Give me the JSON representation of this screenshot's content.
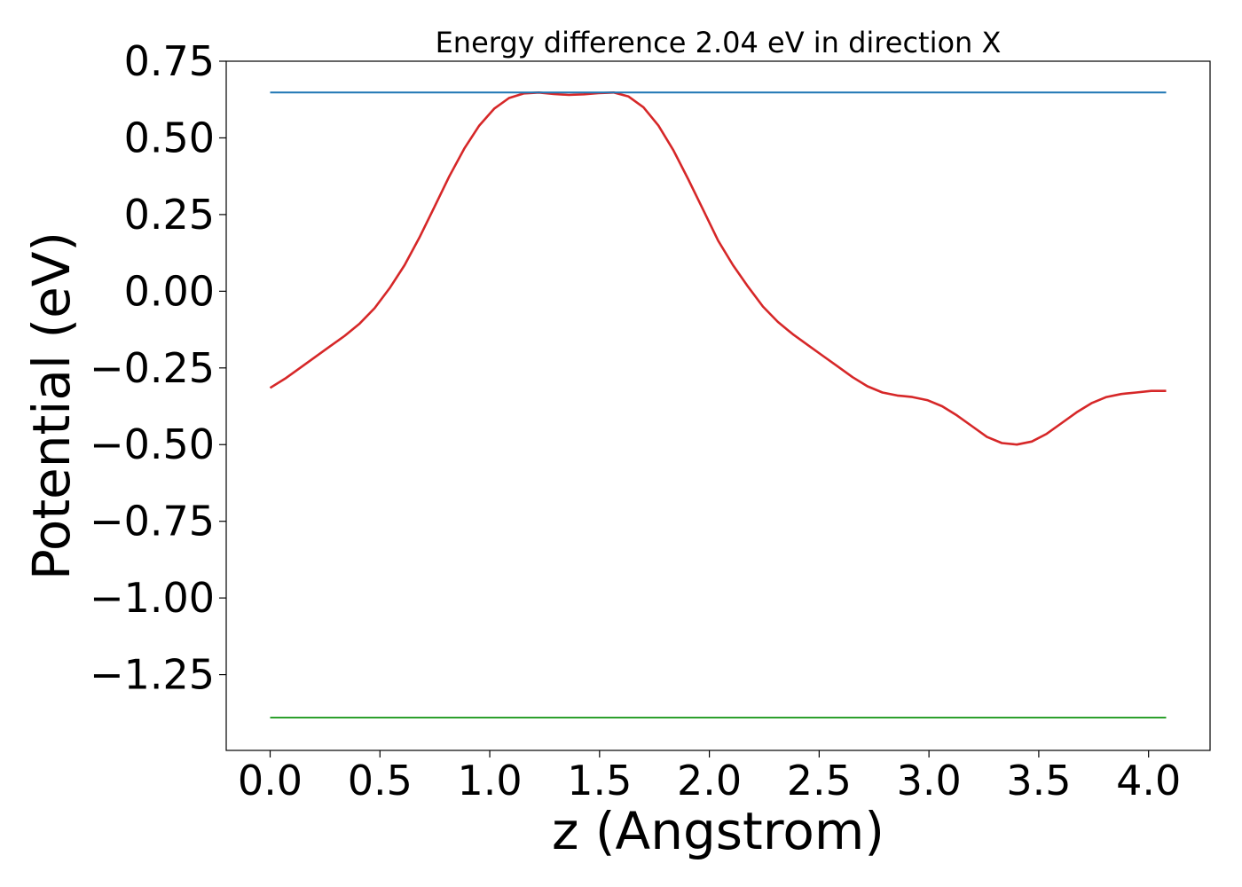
{
  "chart_data": {
    "type": "line",
    "title": "Energy difference 2.04 eV in direction X",
    "xlabel": "z (Angstrom)",
    "ylabel": "Potential (eV)",
    "xlim": [
      -0.2,
      4.28
    ],
    "ylim": [
      -1.497,
      0.75
    ],
    "xticks": [
      0.0,
      0.5,
      1.0,
      1.5,
      2.0,
      2.5,
      3.0,
      3.5,
      4.0
    ],
    "xtick_labels": [
      "0.0",
      "0.5",
      "1.0",
      "1.5",
      "2.0",
      "2.5",
      "3.0",
      "3.5",
      "4.0"
    ],
    "yticks": [
      0.75,
      0.5,
      0.25,
      0.0,
      -0.25,
      -0.5,
      -0.75,
      -1.0,
      -1.25
    ],
    "ytick_labels": [
      "0.75",
      "0.50",
      "0.25",
      "0.00",
      "−0.25",
      "−0.50",
      "−0.75",
      "−1.00",
      "−1.25"
    ],
    "grid": false,
    "legend": "none",
    "series": [
      {
        "color": "#d62728",
        "x": [
          0.0,
          0.068,
          0.136,
          0.204,
          0.272,
          0.34,
          0.408,
          0.476,
          0.544,
          0.612,
          0.68,
          0.748,
          0.816,
          0.884,
          0.952,
          1.02,
          1.088,
          1.156,
          1.224,
          1.292,
          1.36,
          1.428,
          1.496,
          1.564,
          1.632,
          1.7,
          1.768,
          1.836,
          1.904,
          1.972,
          2.04,
          2.108,
          2.176,
          2.244,
          2.312,
          2.38,
          2.448,
          2.516,
          2.584,
          2.652,
          2.72,
          2.788,
          2.856,
          2.924,
          2.992,
          3.06,
          3.128,
          3.196,
          3.264,
          3.332,
          3.4,
          3.468,
          3.536,
          3.604,
          3.672,
          3.74,
          3.808,
          3.876,
          3.944,
          4.012,
          4.08
        ],
        "values": [
          -0.315,
          -0.285,
          -0.25,
          -0.215,
          -0.18,
          -0.145,
          -0.105,
          -0.055,
          0.01,
          0.085,
          0.175,
          0.275,
          0.375,
          0.465,
          0.54,
          0.595,
          0.63,
          0.645,
          0.648,
          0.643,
          0.64,
          0.642,
          0.646,
          0.648,
          0.635,
          0.6,
          0.54,
          0.46,
          0.365,
          0.265,
          0.165,
          0.085,
          0.015,
          -0.05,
          -0.1,
          -0.14,
          -0.175,
          -0.21,
          -0.245,
          -0.28,
          -0.31,
          -0.33,
          -0.34,
          -0.345,
          -0.355,
          -0.375,
          -0.405,
          -0.44,
          -0.475,
          -0.495,
          -0.5,
          -0.49,
          -0.465,
          -0.43,
          -0.395,
          -0.365,
          -0.345,
          -0.335,
          -0.33,
          -0.325,
          -0.325
        ]
      },
      {
        "color": "#1f77b4",
        "x": [
          0.0,
          4.08
        ],
        "values": [
          0.648,
          0.648
        ]
      },
      {
        "color": "#2ca02c",
        "x": [
          0.0,
          4.08
        ],
        "values": [
          -1.39,
          -1.39
        ]
      }
    ]
  }
}
